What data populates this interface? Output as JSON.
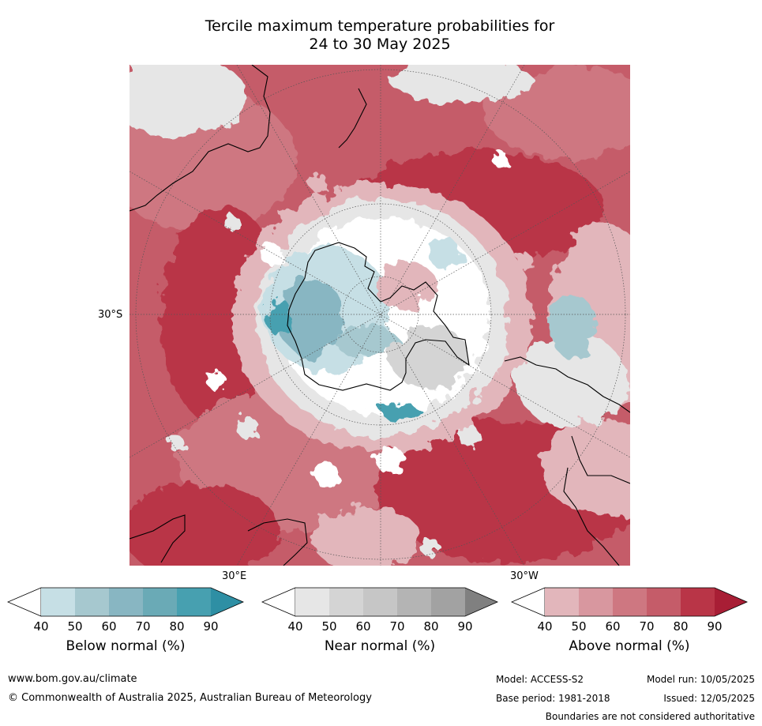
{
  "title_line1": "Tercile maximum temperature probabilities for",
  "title_line2": "24 to 30 May 2025",
  "map": {
    "lat_label": "30°S",
    "lon_label_east": "30°E",
    "lon_label_west": "30°W"
  },
  "legends": [
    {
      "name": "Below normal (%)",
      "ticks": [
        "40",
        "50",
        "60",
        "70",
        "80",
        "90"
      ],
      "colors": [
        "#ffffff",
        "#c6dfe5",
        "#a6c8cf",
        "#88b6c2",
        "#6aaab6",
        "#47a0b0",
        "#2e8fa4"
      ]
    },
    {
      "name": "Near normal (%)",
      "ticks": [
        "40",
        "50",
        "60",
        "70",
        "80",
        "90"
      ],
      "colors": [
        "#ffffff",
        "#e6e6e6",
        "#d4d4d4",
        "#c6c6c6",
        "#b4b4b4",
        "#a2a2a2",
        "#808080"
      ]
    },
    {
      "name": "Above normal (%)",
      "ticks": [
        "40",
        "50",
        "60",
        "70",
        "80",
        "90"
      ],
      "colors": [
        "#ffffff",
        "#e2b6bb",
        "#d8979f",
        "#ce7781",
        "#c55c69",
        "#b93547",
        "#a81e35"
      ]
    }
  ],
  "footer": {
    "website": "www.bom.gov.au/climate",
    "copyright": "© Commonwealth of Australia 2025, Australian Bureau of Meteorology",
    "model": "Model: ACCESS-S2",
    "base_period": "Base period: 1981-2018",
    "model_run": "Model run: 10/05/2025",
    "issued": "Issued: 12/05/2025",
    "disclaimer": "Boundaries are not considered authoritative"
  }
}
